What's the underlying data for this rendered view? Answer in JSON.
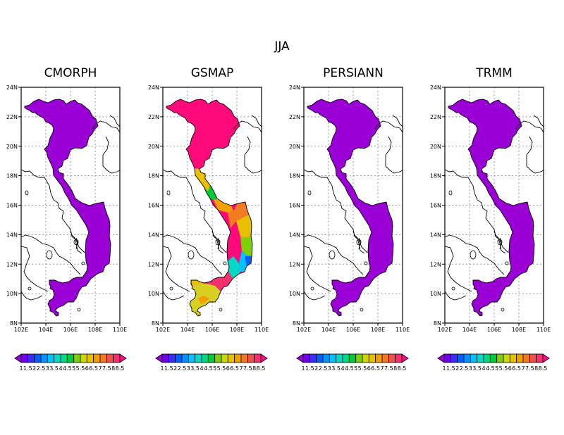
{
  "season": "JJA",
  "panels": [
    {
      "title": "CMORPH",
      "fill": "#9a00d6"
    },
    {
      "title": "GSMAP",
      "fill": "#ff0a7a"
    },
    {
      "title": "PERSIANN",
      "fill": "#9a00d6"
    },
    {
      "title": "TRMM",
      "fill": "#9a00d6"
    }
  ],
  "lon_ticks": [
    "102E",
    "104E",
    "106E",
    "108E",
    "110E"
  ],
  "lat_ticks": [
    "24N",
    "22N",
    "20N",
    "18N",
    "16N",
    "14N",
    "12N",
    "10N",
    "8N"
  ],
  "colorbar": {
    "labels": [
      "1",
      "1.5",
      "2",
      "2.5",
      "3",
      "3.5",
      "4",
      "4.5",
      "5",
      "5.5",
      "6",
      "6.5",
      "7",
      "7.5",
      "8",
      "8.5"
    ],
    "colors": [
      "#9a00d6",
      "#6f00e8",
      "#3a2cff",
      "#0060ff",
      "#0095ff",
      "#00c2ff",
      "#00d9c8",
      "#00d98a",
      "#00cc3a",
      "#7ed000",
      "#c8d800",
      "#e8c000",
      "#f2a000",
      "#f27a20",
      "#f25048",
      "#f5306e",
      "#ff0a8c"
    ]
  }
}
